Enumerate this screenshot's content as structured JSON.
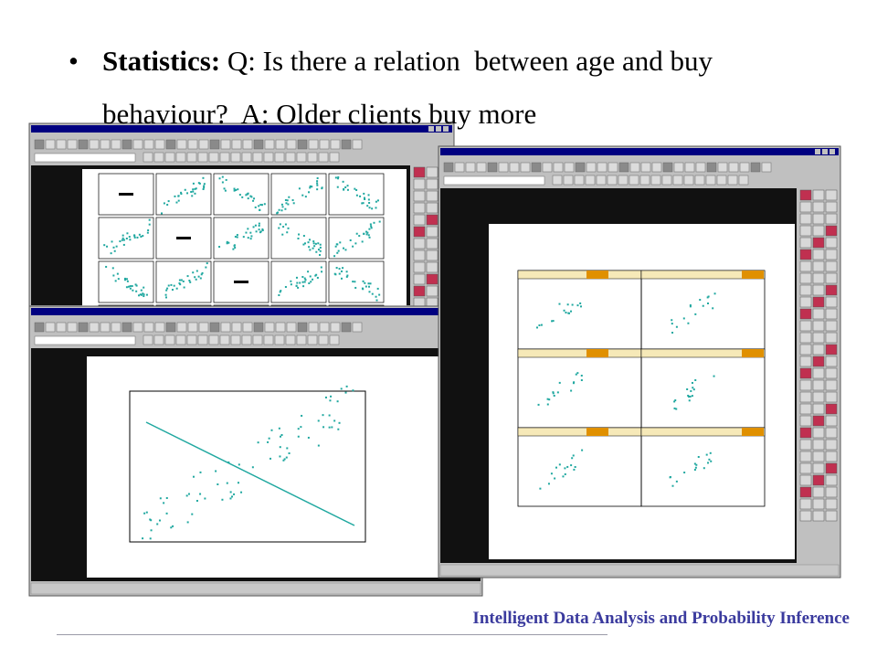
{
  "bullet": {
    "label": "Statistics:",
    "text": "Q: Is there a relation  between age and buy behaviour?  A: Older clients buy more"
  },
  "footer": "Intelligent Data Analysis and Probability Inference"
}
